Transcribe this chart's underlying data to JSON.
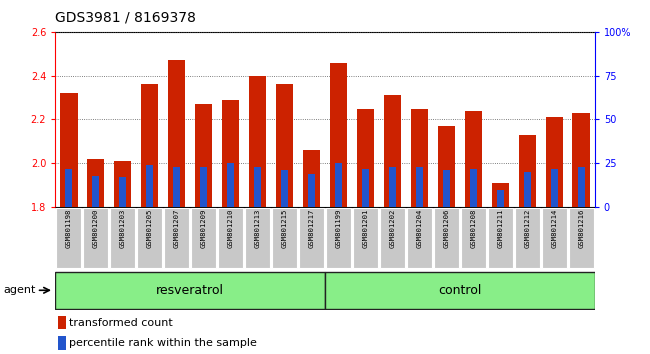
{
  "title": "GDS3981 / 8169378",
  "samples": [
    "GSM801198",
    "GSM801200",
    "GSM801203",
    "GSM801205",
    "GSM801207",
    "GSM801209",
    "GSM801210",
    "GSM801213",
    "GSM801215",
    "GSM801217",
    "GSM801199",
    "GSM801201",
    "GSM801202",
    "GSM801204",
    "GSM801206",
    "GSM801208",
    "GSM801211",
    "GSM801212",
    "GSM801214",
    "GSM801216"
  ],
  "transformed_count": [
    2.32,
    2.02,
    2.01,
    2.36,
    2.47,
    2.27,
    2.29,
    2.4,
    2.36,
    2.06,
    2.46,
    2.25,
    2.31,
    2.25,
    2.17,
    2.24,
    1.91,
    2.13,
    2.21,
    2.23
  ],
  "percentile_rank": [
    22,
    18,
    17,
    24,
    23,
    23,
    25,
    23,
    21,
    19,
    25,
    22,
    23,
    23,
    21,
    22,
    10,
    20,
    22,
    23
  ],
  "resveratrol_count": 10,
  "control_count": 10,
  "bar_color": "#cc2200",
  "percentile_color": "#2255cc",
  "ylim_left": [
    1.8,
    2.6
  ],
  "ylim_right": [
    0,
    100
  ],
  "yticks_left": [
    1.8,
    2.0,
    2.2,
    2.4,
    2.6
  ],
  "yticks_right": [
    0,
    25,
    50,
    75,
    100
  ],
  "ytick_labels_right": [
    "0",
    "25",
    "50",
    "75",
    "100%"
  ],
  "grid_color": "#555555",
  "bar_width": 0.65,
  "percentile_bar_width": 0.25,
  "agent_label": "agent",
  "group1_label": "resveratrol",
  "group2_label": "control",
  "legend_items": [
    "transformed count",
    "percentile rank within the sample"
  ],
  "tick_label_bg": "#c8c8c8",
  "group_bg": "#88ee88",
  "group_border": "#222222",
  "title_fontsize": 10,
  "tick_fontsize": 7,
  "legend_fontsize": 8,
  "group_fontsize": 9
}
